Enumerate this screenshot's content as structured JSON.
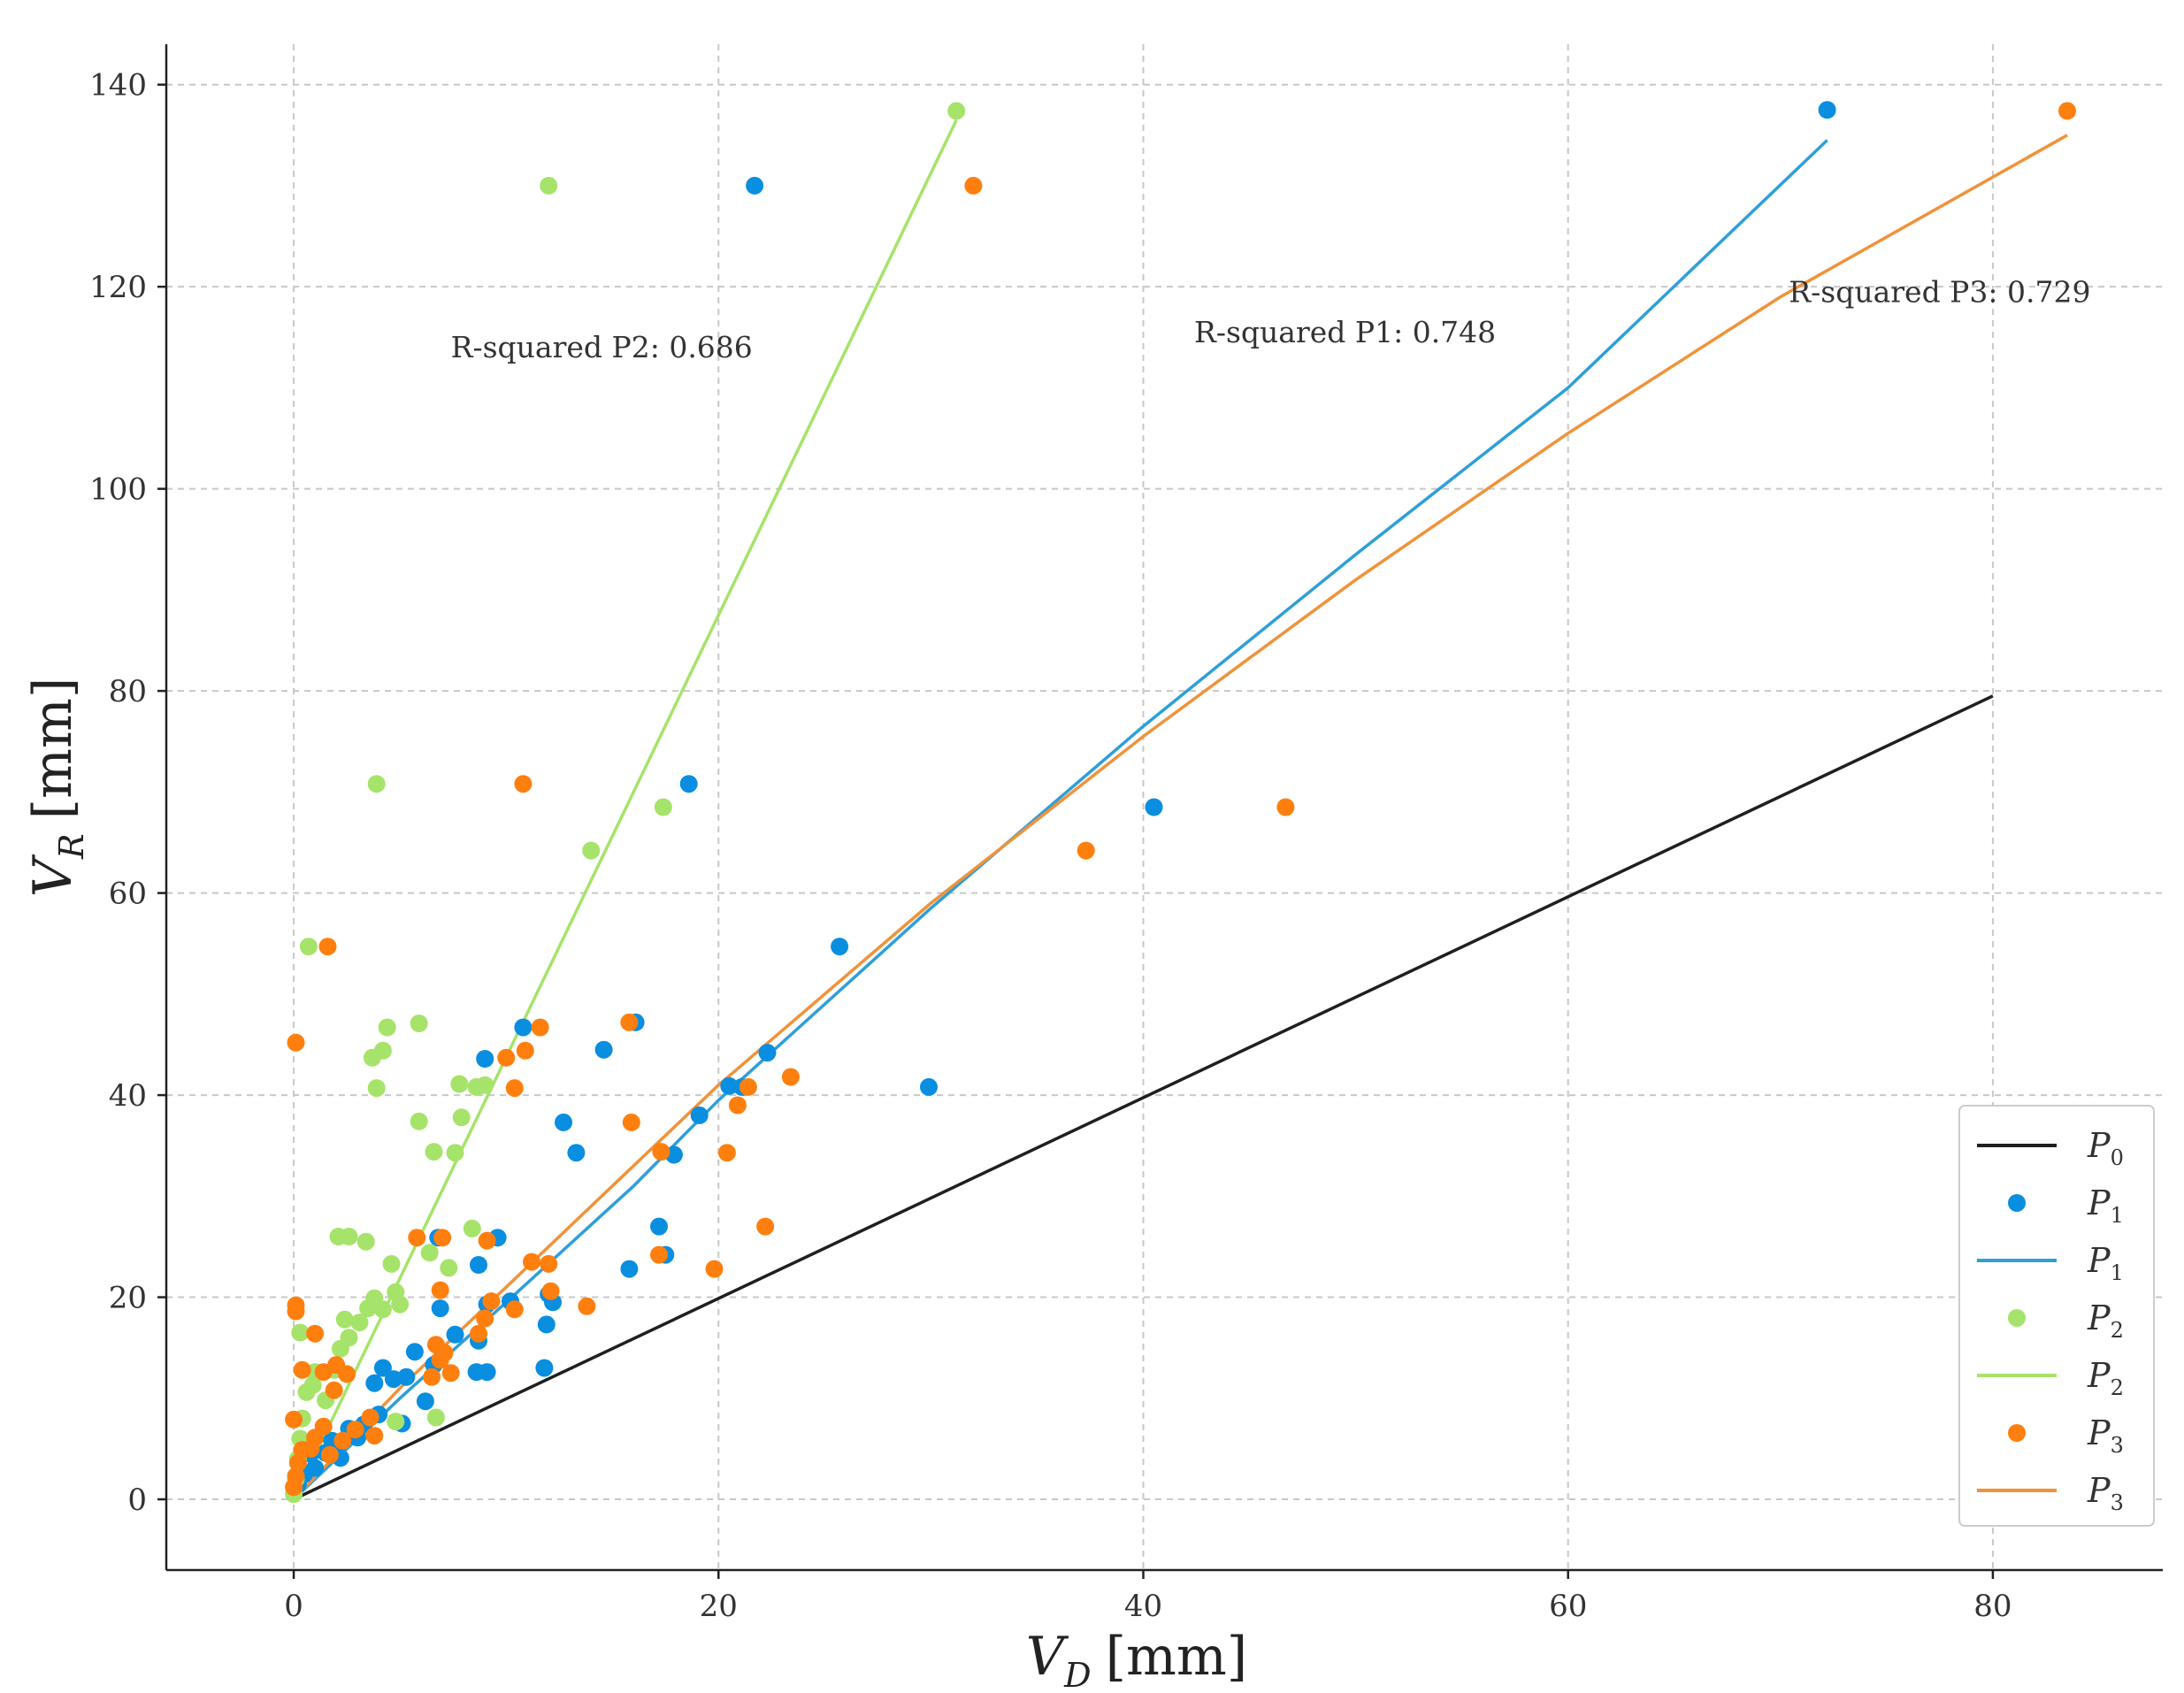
{
  "chart_data": {
    "type": "scatter",
    "xlabel": {
      "main": "V",
      "sub": "D",
      "unit": "[mm]"
    },
    "ylabel": {
      "main": "V",
      "sub": "R",
      "unit": "[mm]"
    },
    "xlim": [
      -6,
      88
    ],
    "ylim": [
      -7,
      144
    ],
    "xticks": [
      0,
      20,
      40,
      60,
      80
    ],
    "yticks": [
      0,
      20,
      40,
      60,
      80,
      100,
      120,
      140
    ],
    "grid": true,
    "legend_position": "bottom-right",
    "legend": [
      {
        "label": "P",
        "sub": "0",
        "kind": "line",
        "color": "#1f1f1f"
      },
      {
        "label": "P",
        "sub": "1",
        "kind": "marker",
        "color": "#0a8ee0"
      },
      {
        "label": "P",
        "sub": "1",
        "kind": "line",
        "color": "#2d9fd9"
      },
      {
        "label": "P",
        "sub": "2",
        "kind": "marker",
        "color": "#a6e36a"
      },
      {
        "label": "P",
        "sub": "2",
        "kind": "line",
        "color": "#a6e36a"
      },
      {
        "label": "P",
        "sub": "3",
        "kind": "marker",
        "color": "#ff7f0e"
      },
      {
        "label": "P",
        "sub": "3",
        "kind": "line",
        "color": "#f0923a"
      }
    ],
    "annotations": [
      {
        "text": "R-squared P2: 0.686",
        "x": 14.5,
        "y": 113
      },
      {
        "text": "R-squared P1: 0.748",
        "x": 49.5,
        "y": 114.5
      },
      {
        "text": "R-squared P3: 0.729",
        "x": 77.5,
        "y": 118.5
      }
    ],
    "fits": [
      {
        "name": "P0",
        "color": "#1f1f1f",
        "points": [
          [
            0,
            0
          ],
          [
            80,
            79.5
          ]
        ]
      },
      {
        "name": "P1",
        "color": "#2d9fd9",
        "points": [
          [
            0,
            0
          ],
          [
            5,
            10
          ],
          [
            10,
            19.5
          ],
          [
            16,
            31
          ],
          [
            20,
            39.5
          ],
          [
            30,
            58.5
          ],
          [
            40,
            76.5
          ],
          [
            50,
            93.5
          ],
          [
            60,
            110
          ],
          [
            72.2,
            134.5
          ]
        ]
      },
      {
        "name": "P2",
        "color": "#a6e36a",
        "points": [
          [
            0,
            0
          ],
          [
            31.2,
            136.5
          ]
        ]
      },
      {
        "name": "P3",
        "color": "#f0923a",
        "points": [
          [
            0,
            0
          ],
          [
            5,
            11
          ],
          [
            10,
            21
          ],
          [
            16,
            33
          ],
          [
            20,
            41
          ],
          [
            30,
            59
          ],
          [
            40,
            75.5
          ],
          [
            50,
            91
          ],
          [
            60,
            105.5
          ],
          [
            70,
            119
          ],
          [
            83.5,
            135
          ]
        ]
      }
    ],
    "series": [
      {
        "name": "P1",
        "color": "#0a8ee0",
        "points": [
          [
            72.2,
            137.5
          ],
          [
            21.7,
            130
          ],
          [
            18.6,
            70.8
          ],
          [
            40.5,
            68.5
          ],
          [
            25.7,
            54.7
          ],
          [
            16.1,
            47.2
          ],
          [
            10.8,
            46.7
          ],
          [
            9.0,
            43.6
          ],
          [
            14.6,
            44.5
          ],
          [
            22.3,
            44.2
          ],
          [
            20.5,
            40.9
          ],
          [
            21.1,
            40.8
          ],
          [
            29.9,
            40.8
          ],
          [
            19.1,
            38.0
          ],
          [
            12.7,
            37.3
          ],
          [
            17.9,
            34.1
          ],
          [
            13.3,
            34.3
          ],
          [
            17.2,
            27.0
          ],
          [
            17.5,
            24.2
          ],
          [
            15.8,
            22.8
          ],
          [
            9.6,
            25.9
          ],
          [
            6.8,
            25.9
          ],
          [
            8.7,
            23.2
          ],
          [
            6.9,
            18.9
          ],
          [
            12.0,
            20.3
          ],
          [
            12.2,
            19.5
          ],
          [
            10.2,
            19.6
          ],
          [
            9.1,
            19.3
          ],
          [
            11.9,
            17.3
          ],
          [
            7.6,
            16.3
          ],
          [
            8.7,
            15.7
          ],
          [
            5.7,
            14.6
          ],
          [
            6.6,
            13.3
          ],
          [
            4.2,
            13.0
          ],
          [
            8.6,
            12.6
          ],
          [
            9.1,
            12.6
          ],
          [
            11.8,
            13.0
          ],
          [
            3.8,
            11.5
          ],
          [
            4.7,
            11.9
          ],
          [
            5.3,
            12.1
          ],
          [
            6.2,
            9.7
          ],
          [
            4.0,
            8.4
          ],
          [
            3.3,
            7.4
          ],
          [
            5.1,
            7.5
          ],
          [
            2.6,
            7.0
          ],
          [
            3.0,
            6.1
          ],
          [
            2.0,
            5.3
          ],
          [
            1.5,
            4.6
          ],
          [
            1.0,
            3.1
          ],
          [
            0.5,
            2.5
          ],
          [
            0.2,
            1.5
          ],
          [
            1.8,
            5.8
          ],
          [
            2.2,
            4.1
          ],
          [
            0.8,
            4.5
          ]
        ]
      },
      {
        "name": "P2",
        "color": "#a6e36a",
        "points": [
          [
            31.2,
            137.4
          ],
          [
            12.0,
            130
          ],
          [
            3.9,
            70.8
          ],
          [
            17.4,
            68.5
          ],
          [
            14.0,
            64.2
          ],
          [
            0.7,
            54.7
          ],
          [
            5.9,
            47.1
          ],
          [
            4.4,
            46.7
          ],
          [
            4.2,
            44.4
          ],
          [
            3.7,
            43.7
          ],
          [
            3.9,
            40.7
          ],
          [
            8.6,
            40.8
          ],
          [
            7.8,
            41.1
          ],
          [
            9.0,
            41.0
          ],
          [
            7.9,
            37.8
          ],
          [
            5.9,
            37.4
          ],
          [
            6.6,
            34.4
          ],
          [
            7.6,
            34.3
          ],
          [
            2.1,
            26.0
          ],
          [
            2.6,
            26.0
          ],
          [
            3.4,
            25.5
          ],
          [
            8.4,
            26.8
          ],
          [
            6.4,
            24.4
          ],
          [
            4.6,
            23.3
          ],
          [
            7.3,
            22.9
          ],
          [
            4.8,
            20.5
          ],
          [
            5.0,
            19.3
          ],
          [
            3.5,
            18.9
          ],
          [
            3.8,
            19.9
          ],
          [
            4.2,
            18.8
          ],
          [
            2.4,
            17.8
          ],
          [
            3.1,
            17.5
          ],
          [
            2.6,
            16.0
          ],
          [
            2.2,
            14.9
          ],
          [
            0.3,
            16.5
          ],
          [
            1.9,
            12.8
          ],
          [
            1.0,
            12.6
          ],
          [
            6.7,
            8.1
          ],
          [
            0.9,
            11.3
          ],
          [
            0.6,
            10.6
          ],
          [
            1.5,
            9.8
          ],
          [
            4.8,
            7.7
          ],
          [
            0.4,
            8.0
          ],
          [
            0.3,
            6.0
          ],
          [
            0.2,
            4.0
          ],
          [
            0.1,
            2.0
          ],
          [
            0.0,
            0.5
          ]
        ]
      },
      {
        "name": "P3",
        "color": "#ff7f0e",
        "points": [
          [
            83.5,
            137.4
          ],
          [
            32.0,
            130
          ],
          [
            10.8,
            70.8
          ],
          [
            46.7,
            68.5
          ],
          [
            37.3,
            64.2
          ],
          [
            1.6,
            54.7
          ],
          [
            0.1,
            45.2
          ],
          [
            15.8,
            47.2
          ],
          [
            11.6,
            46.7
          ],
          [
            10.9,
            44.4
          ],
          [
            10.0,
            43.7
          ],
          [
            23.4,
            41.8
          ],
          [
            10.4,
            40.7
          ],
          [
            21.4,
            40.8
          ],
          [
            20.9,
            39.0
          ],
          [
            15.9,
            37.3
          ],
          [
            17.3,
            34.4
          ],
          [
            20.4,
            34.3
          ],
          [
            22.2,
            27.0
          ],
          [
            17.2,
            24.2
          ],
          [
            19.8,
            22.8
          ],
          [
            5.8,
            25.9
          ],
          [
            7.0,
            25.9
          ],
          [
            9.1,
            25.6
          ],
          [
            11.2,
            23.5
          ],
          [
            12.0,
            23.3
          ],
          [
            6.9,
            20.7
          ],
          [
            12.1,
            20.6
          ],
          [
            9.3,
            19.6
          ],
          [
            10.4,
            18.8
          ],
          [
            13.8,
            19.1
          ],
          [
            0.1,
            19.2
          ],
          [
            0.1,
            18.6
          ],
          [
            9.0,
            17.9
          ],
          [
            8.7,
            16.4
          ],
          [
            1.0,
            16.4
          ],
          [
            6.7,
            15.3
          ],
          [
            7.1,
            14.5
          ],
          [
            6.9,
            13.8
          ],
          [
            2.0,
            13.3
          ],
          [
            0.4,
            12.8
          ],
          [
            1.4,
            12.6
          ],
          [
            2.5,
            12.4
          ],
          [
            6.5,
            12.1
          ],
          [
            7.4,
            12.5
          ],
          [
            1.9,
            10.8
          ],
          [
            0.0,
            7.9
          ],
          [
            3.6,
            8.1
          ],
          [
            3.8,
            6.3
          ],
          [
            2.3,
            5.8
          ],
          [
            1.4,
            7.2
          ],
          [
            1.0,
            6.1
          ],
          [
            0.8,
            5.0
          ],
          [
            0.4,
            4.9
          ],
          [
            0.2,
            3.6
          ],
          [
            0.1,
            2.3
          ],
          [
            0.0,
            1.2
          ],
          [
            1.7,
            4.4
          ],
          [
            2.9,
            6.9
          ]
        ]
      }
    ]
  }
}
